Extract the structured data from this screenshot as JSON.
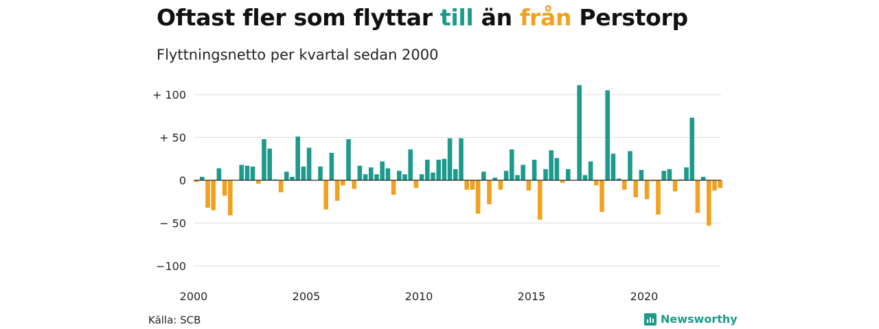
{
  "title": {
    "part1": "Oftast fler som flyttar ",
    "highlight_in": "till",
    "part2": " än ",
    "highlight_out": "från",
    "part3": " Perstorp"
  },
  "subtitle": "Flyttningsnetto per kvartal sedan 2000",
  "source": "Källa: SCB",
  "brand": "Newsworthy",
  "colors": {
    "positive": "#1c9a8c",
    "negative": "#f2a11f",
    "grid": "#dddddd",
    "zero": "#222222"
  },
  "chart_data": {
    "type": "bar",
    "title": "Oftast fler som flyttar till än från Perstorp",
    "subtitle": "Flyttningsnetto per kvartal sedan 2000",
    "x_start": "2000 Q1",
    "x_ticks": [
      "2000",
      "2005",
      "2010",
      "2015",
      "2020"
    ],
    "y_ticks": [
      {
        "value": 100,
        "label": "+ 100"
      },
      {
        "value": 50,
        "label": "+  50"
      },
      {
        "value": 0,
        "label": "0"
      },
      {
        "value": -50,
        "label": "− 50"
      },
      {
        "value": -100,
        "label": "−100"
      }
    ],
    "ylim": [
      -100,
      100
    ],
    "grid": true,
    "values": [
      -2,
      4,
      -32,
      -35,
      14,
      -18,
      -41,
      0,
      18,
      17,
      16,
      -4,
      48,
      37,
      1,
      -14,
      10,
      4,
      51,
      16,
      38,
      0,
      16,
      -34,
      32,
      -24,
      -6,
      48,
      -10,
      17,
      7,
      15,
      7,
      22,
      14,
      -17,
      11,
      7,
      36,
      -9,
      7,
      24,
      9,
      24,
      25,
      49,
      13,
      49,
      -11,
      -11,
      -39,
      10,
      -28,
      3,
      -11,
      11,
      36,
      6,
      18,
      -12,
      24,
      -46,
      13,
      35,
      26,
      -3,
      13,
      0,
      111,
      6,
      22,
      -6,
      -37,
      105,
      31,
      2,
      -11,
      34,
      -20,
      12,
      -22,
      -1,
      -40,
      11,
      13,
      -13,
      1,
      15,
      73,
      -38,
      4,
      -53,
      -12,
      -9
    ]
  }
}
